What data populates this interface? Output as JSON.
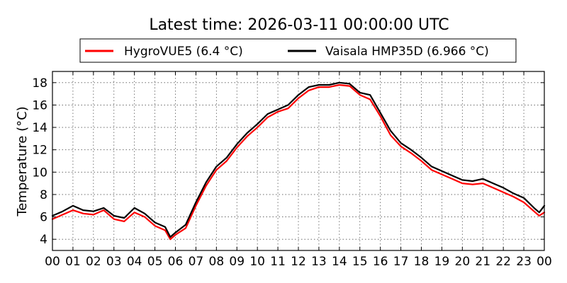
{
  "chart_data": {
    "type": "line",
    "title": "Latest time: 2026-03-11 00:00:00 UTC",
    "ylabel": "Temperature (°C)",
    "xlabel": "",
    "xlim": [
      0,
      24
    ],
    "ylim": [
      3,
      19
    ],
    "x_tick_labels": [
      "00",
      "01",
      "02",
      "03",
      "04",
      "05",
      "06",
      "07",
      "08",
      "09",
      "10",
      "11",
      "12",
      "13",
      "14",
      "15",
      "16",
      "17",
      "18",
      "19",
      "20",
      "21",
      "22",
      "23",
      "00"
    ],
    "y_ticks": [
      4,
      6,
      8,
      10,
      12,
      14,
      16,
      18
    ],
    "grid": true,
    "legend_placement": "top-center-outside",
    "x": [
      0,
      0.5,
      1,
      1.5,
      2,
      2.5,
      3,
      3.5,
      4,
      4.5,
      5,
      5.5,
      5.75,
      6,
      6.5,
      7,
      7.5,
      8,
      8.5,
      9,
      9.5,
      10,
      10.5,
      11,
      11.5,
      12,
      12.5,
      13,
      13.5,
      14,
      14.5,
      15,
      15.5,
      16,
      16.5,
      17,
      17.5,
      18,
      18.5,
      19,
      19.5,
      20,
      20.5,
      21,
      21.5,
      22,
      22.5,
      23,
      23.5,
      23.75,
      24
    ],
    "series": [
      {
        "name": "HygroVUE5 (6.4 °C)",
        "color": "#ff0000",
        "values": [
          5.8,
          6.2,
          6.6,
          6.3,
          6.2,
          6.6,
          5.8,
          5.6,
          6.4,
          6.0,
          5.2,
          4.8,
          4.0,
          4.4,
          5.0,
          7.0,
          8.8,
          10.2,
          11.0,
          12.2,
          13.2,
          14.0,
          14.9,
          15.4,
          15.7,
          16.6,
          17.3,
          17.6,
          17.6,
          17.8,
          17.7,
          16.9,
          16.5,
          15.0,
          13.3,
          12.3,
          11.7,
          11.0,
          10.2,
          9.8,
          9.4,
          9.0,
          8.9,
          9.0,
          8.6,
          8.2,
          7.8,
          7.3,
          6.5,
          6.1,
          6.4
        ]
      },
      {
        "name": "Vaisala HMP35D (6.966 °C)",
        "color": "#000000",
        "values": [
          6.1,
          6.5,
          7.0,
          6.6,
          6.5,
          6.8,
          6.1,
          5.9,
          6.8,
          6.3,
          5.5,
          5.1,
          4.2,
          4.6,
          5.3,
          7.3,
          9.1,
          10.5,
          11.3,
          12.5,
          13.5,
          14.3,
          15.2,
          15.6,
          16.0,
          16.9,
          17.6,
          17.8,
          17.8,
          18.0,
          17.9,
          17.1,
          16.9,
          15.3,
          13.7,
          12.6,
          12.0,
          11.3,
          10.5,
          10.1,
          9.7,
          9.3,
          9.2,
          9.4,
          9.0,
          8.6,
          8.1,
          7.7,
          6.8,
          6.4,
          7.0
        ]
      }
    ]
  }
}
